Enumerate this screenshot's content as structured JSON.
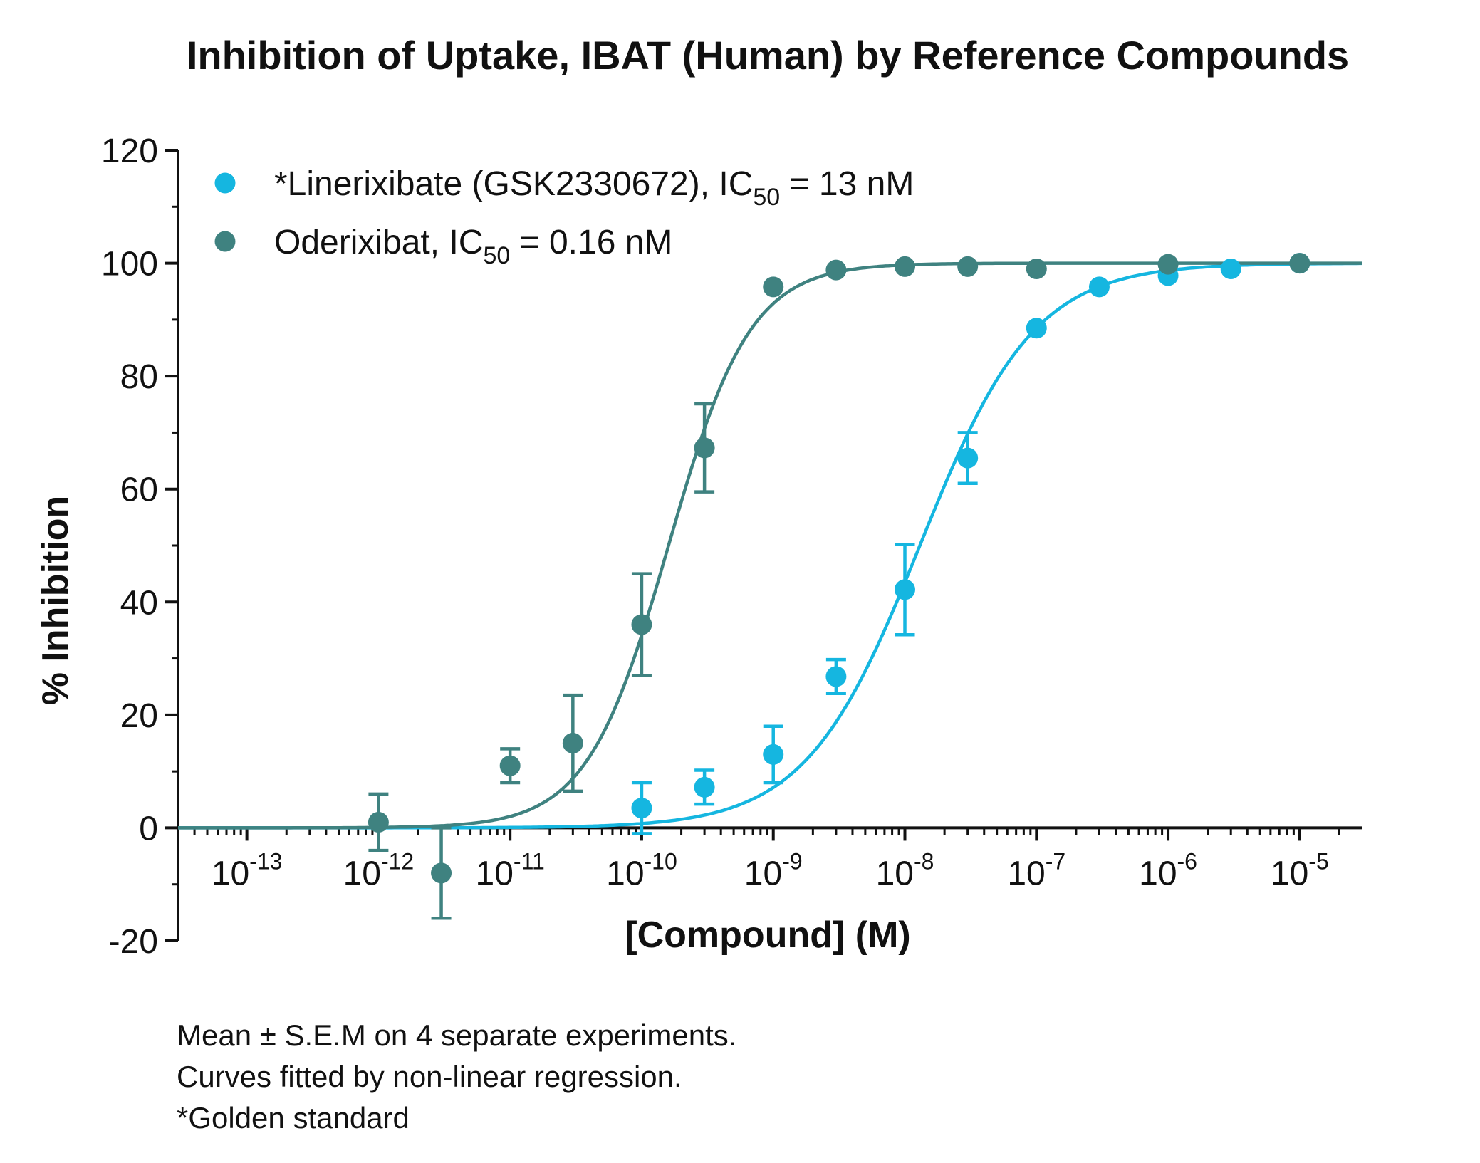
{
  "chart_data": {
    "type": "scatter",
    "title": "Inhibition of Uptake, IBAT (Human)  by Reference Compounds",
    "xlabel": "[Compound] (M)",
    "ylabel": "% Inhibition",
    "x_scale": "log",
    "xlim": [
      3e-14,
      3e-05
    ],
    "ylim": [
      -20,
      120
    ],
    "x_ticks": [
      {
        "value": 1e-13,
        "base": "10",
        "exp": "-13"
      },
      {
        "value": 1e-12,
        "base": "10",
        "exp": "-12"
      },
      {
        "value": 1e-11,
        "base": "10",
        "exp": "-11"
      },
      {
        "value": 1e-10,
        "base": "10",
        "exp": "-10"
      },
      {
        "value": 1e-09,
        "base": "10",
        "exp": "-9"
      },
      {
        "value": 1e-08,
        "base": "10",
        "exp": "-8"
      },
      {
        "value": 1e-07,
        "base": "10",
        "exp": "-7"
      },
      {
        "value": 1e-06,
        "base": "10",
        "exp": "-6"
      },
      {
        "value": 1e-05,
        "base": "10",
        "exp": "-5"
      }
    ],
    "y_ticks": [
      -20,
      0,
      20,
      40,
      60,
      80,
      100,
      120
    ],
    "legend_position": "top-left",
    "series": [
      {
        "name": "*Linerixibate (GSK2330672), IC",
        "name_sub": "50",
        "name_tail": " = 13 nM",
        "color": "#15b6e0",
        "ic50": 1.3e-08,
        "hill": 1.0,
        "points": [
          {
            "x": 1e-10,
            "y": 3.5,
            "err": 4.5
          },
          {
            "x": 3e-10,
            "y": 7.2,
            "err": 3.0
          },
          {
            "x": 1e-09,
            "y": 13.0,
            "err": 5.0
          },
          {
            "x": 3e-09,
            "y": 26.8,
            "err": 3.0
          },
          {
            "x": 1e-08,
            "y": 42.2,
            "err": 8.0
          },
          {
            "x": 3e-08,
            "y": 65.5,
            "err": 4.5
          },
          {
            "x": 1e-07,
            "y": 88.5,
            "err": 0
          },
          {
            "x": 3e-07,
            "y": 95.8,
            "err": 0
          },
          {
            "x": 1e-06,
            "y": 97.8,
            "err": 0
          },
          {
            "x": 3e-06,
            "y": 99.0,
            "err": 0
          },
          {
            "x": 1e-05,
            "y": 100.0,
            "err": 0
          }
        ]
      },
      {
        "name": "Oderixibat, IC",
        "name_sub": "50",
        "name_tail": " = 0.16 nM",
        "color": "#3f8280",
        "ic50": 1.6e-10,
        "hill": 1.4,
        "points": [
          {
            "x": 1e-12,
            "y": 1.0,
            "err": 5.0
          },
          {
            "x": 3e-12,
            "y": -8.0,
            "err": 8.0
          },
          {
            "x": 1e-11,
            "y": 11.0,
            "err": 3.0
          },
          {
            "x": 3e-11,
            "y": 15.0,
            "err": 8.5
          },
          {
            "x": 1e-10,
            "y": 36.0,
            "err": 9.0
          },
          {
            "x": 3e-10,
            "y": 67.3,
            "err": 7.8
          },
          {
            "x": 1e-09,
            "y": 95.8,
            "err": 0
          },
          {
            "x": 3e-09,
            "y": 98.8,
            "err": 0
          },
          {
            "x": 1e-08,
            "y": 99.4,
            "err": 0
          },
          {
            "x": 3e-08,
            "y": 99.4,
            "err": 0
          },
          {
            "x": 1e-07,
            "y": 99.0,
            "err": 0
          },
          {
            "x": 1e-06,
            "y": 99.8,
            "err": 0
          },
          {
            "x": 1e-05,
            "y": 100.0,
            "err": 0
          }
        ]
      }
    ]
  },
  "footnotes": [
    "Mean ± S.E.M on 4 separate experiments.",
    "Curves fitted by non-linear regression.",
    "*Golden standard"
  ]
}
